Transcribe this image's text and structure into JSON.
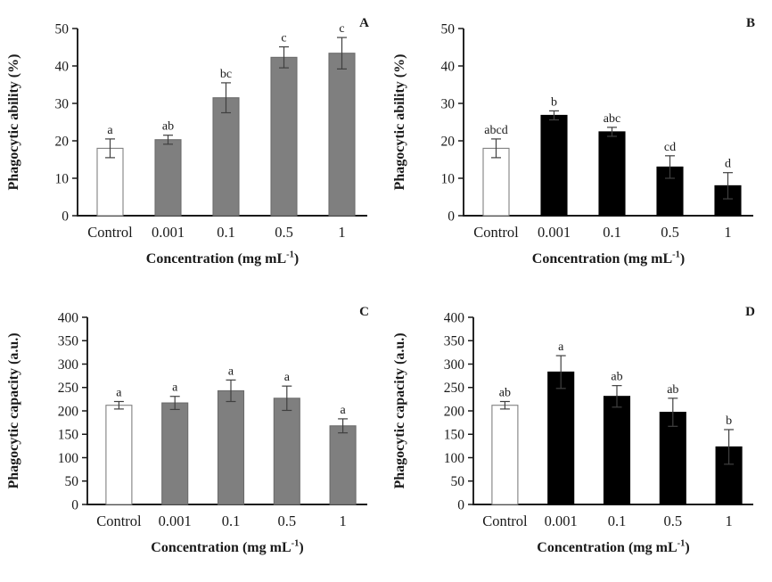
{
  "figure": {
    "background": "#ffffff",
    "axis_color": "#1a1a1a",
    "error_bar_color": "#404040",
    "xlabel": {
      "text": "Concentration (mg mL-1)",
      "prefix": "Concentration (mg mL",
      "superscript": "-1",
      "suffix": ")"
    }
  },
  "chart_data": [
    {
      "panel": "A",
      "type": "bar",
      "title": "",
      "ylabel": "Phagocytic ability (%)",
      "xlabel": "Concentration (mg mL-1)",
      "categories": [
        "Control",
        "0.001",
        "0.1",
        "0.5",
        "1"
      ],
      "values": [
        18,
        20.3,
        31.5,
        42.3,
        43.4
      ],
      "errors": [
        2.5,
        1.2,
        4,
        2.8,
        4.2
      ],
      "sig_letters": [
        "a",
        "ab",
        "bc",
        "c",
        "c"
      ],
      "ylim": [
        0,
        50
      ],
      "ytick_step": 10,
      "grid": false,
      "legend": "none",
      "control_fill": "#ffffff",
      "control_stroke": "#808080",
      "treatment_fill": "#7f7f7f",
      "treatment_stroke": "#6b6b6b"
    },
    {
      "panel": "B",
      "type": "bar",
      "title": "",
      "ylabel": "Phagocytic ability (%)",
      "xlabel": "Concentration (mg mL-1)",
      "categories": [
        "Control",
        "0.001",
        "0.1",
        "0.5",
        "1"
      ],
      "values": [
        18,
        26.8,
        22.4,
        13,
        8
      ],
      "errors": [
        2.5,
        1.2,
        1.2,
        3,
        3.5
      ],
      "sig_letters": [
        "abcd",
        "b",
        "abc",
        "cd",
        "d"
      ],
      "ylim": [
        0,
        50
      ],
      "ytick_step": 10,
      "grid": false,
      "legend": "none",
      "control_fill": "#ffffff",
      "control_stroke": "#808080",
      "treatment_fill": "#000000",
      "treatment_stroke": "#000000"
    },
    {
      "panel": "C",
      "type": "bar",
      "title": "",
      "ylabel": "Phagocytic capacity (a.u.)",
      "xlabel": "Concentration (mg mL-1)",
      "categories": [
        "Control",
        "0.001",
        "0.1",
        "0.5",
        "1"
      ],
      "values": [
        212,
        217,
        243,
        227,
        168
      ],
      "errors": [
        8,
        14,
        23,
        26,
        15
      ],
      "sig_letters": [
        "a",
        "a",
        "a",
        "a",
        "a"
      ],
      "ylim": [
        0,
        400
      ],
      "ytick_step": 50,
      "grid": false,
      "legend": "none",
      "control_fill": "#ffffff",
      "control_stroke": "#808080",
      "treatment_fill": "#7f7f7f",
      "treatment_stroke": "#6b6b6b"
    },
    {
      "panel": "D",
      "type": "bar",
      "title": "",
      "ylabel": "Phagocytic capacity (a.u.)",
      "xlabel": "Concentration (mg mL-1)",
      "categories": [
        "Control",
        "0.001",
        "0.1",
        "0.5",
        "1"
      ],
      "values": [
        212,
        283,
        231,
        197,
        123
      ],
      "errors": [
        8,
        35,
        23,
        30,
        37
      ],
      "sig_letters": [
        "ab",
        "a",
        "ab",
        "ab",
        "b"
      ],
      "ylim": [
        0,
        400
      ],
      "ytick_step": 50,
      "grid": false,
      "legend": "none",
      "control_fill": "#ffffff",
      "control_stroke": "#808080",
      "treatment_fill": "#000000",
      "treatment_stroke": "#000000"
    }
  ]
}
